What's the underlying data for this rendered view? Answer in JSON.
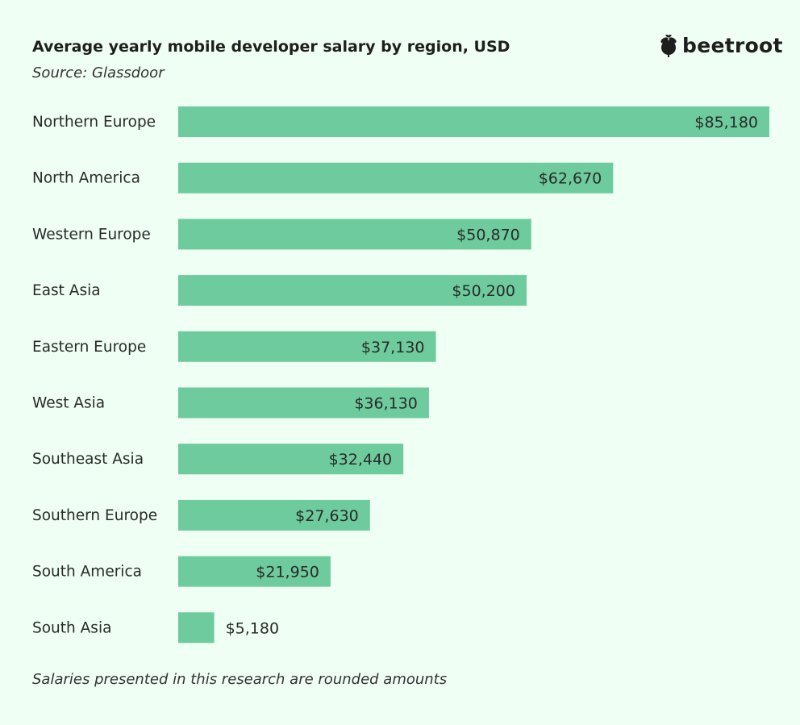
{
  "header": {
    "title": "Average yearly mobile developer salary by region, USD",
    "source": "Source: Glassdoor",
    "logo_text": "beetroot",
    "logo_icon": "beetroot-icon"
  },
  "footer": {
    "note": "Salaries presented in this research are rounded amounts"
  },
  "colors": {
    "bar": "#6dcb9d",
    "background": "#effff4",
    "text": "#2a2a2a"
  },
  "chart_data": {
    "type": "bar",
    "orientation": "horizontal",
    "title": "Average yearly mobile developer salary by region, USD",
    "subtitle": "Source: Glassdoor",
    "categories": [
      "Northern Europe",
      "North America",
      "Western Europe",
      "East Asia",
      "Eastern Europe",
      "West Asia",
      "Southeast Asia",
      "Southern Europe",
      "South America",
      "South Asia"
    ],
    "values": [
      85180,
      62670,
      50870,
      50200,
      37130,
      36130,
      32440,
      27630,
      21950,
      5180
    ],
    "data_labels": [
      "$85,180",
      "$62,670",
      "$50,870",
      "$50,200",
      "$37,130",
      "$36,130",
      "$32,440",
      "$27,630",
      "$21,950",
      "$5,180"
    ],
    "xlim": [
      0,
      85180
    ],
    "grid": false,
    "legend": "none"
  }
}
